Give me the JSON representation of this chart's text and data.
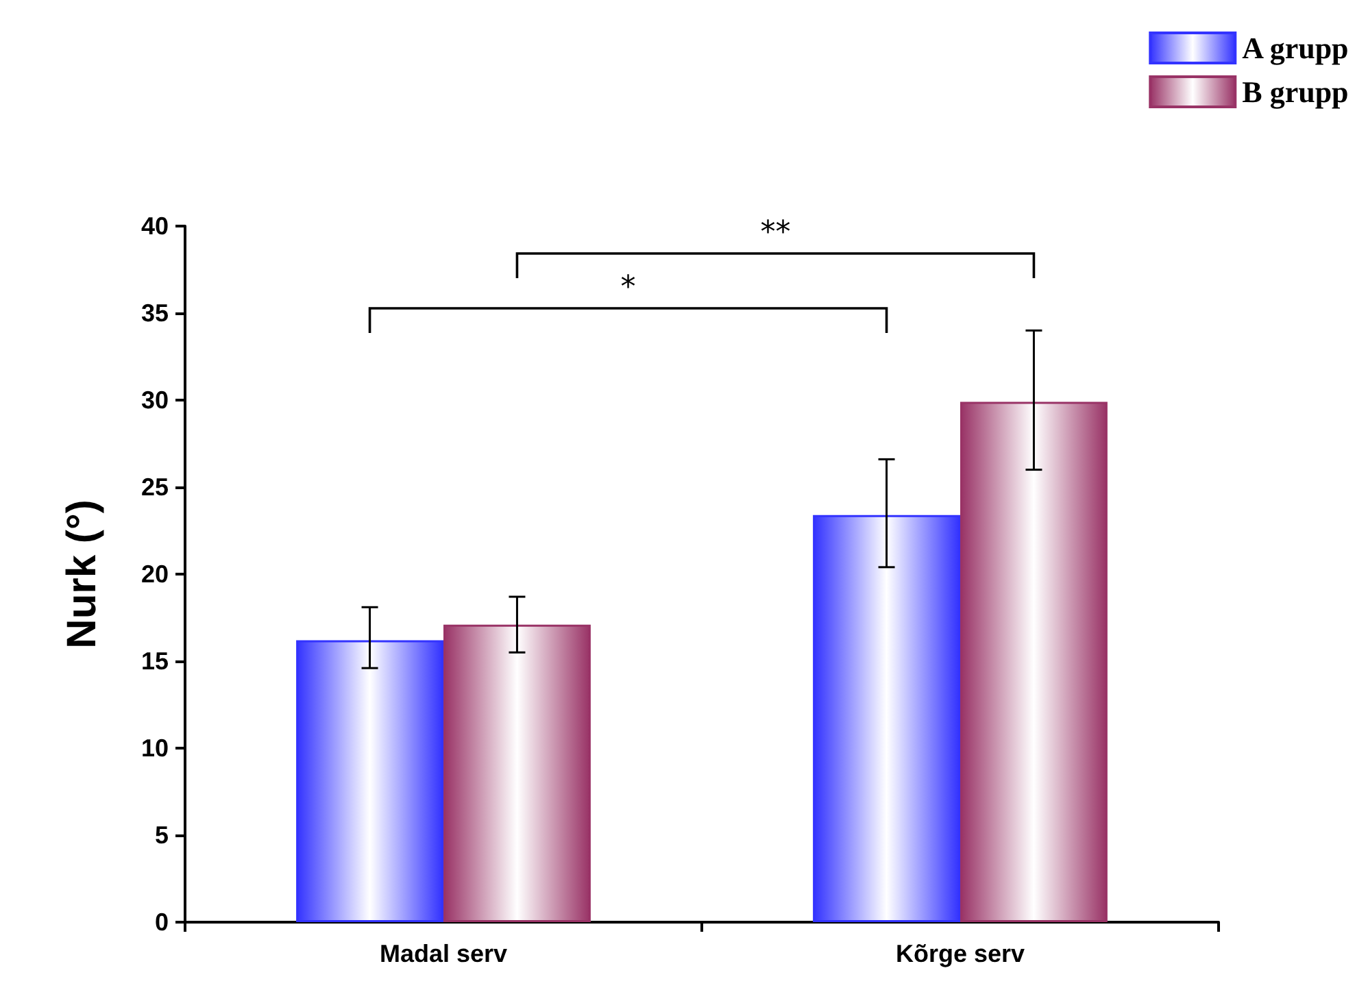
{
  "chart_data": {
    "type": "bar",
    "categories": [
      "Madal serv",
      "Kõrge serv"
    ],
    "ylabel": "Nurk (°)",
    "ylim": [
      0,
      40
    ],
    "yticks": [
      0,
      5,
      10,
      15,
      20,
      25,
      30,
      35,
      40
    ],
    "legend": "top right",
    "grid": false,
    "series": [
      {
        "name": "A grupp",
        "color": "#3333ff",
        "values": [
          16.2,
          23.4
        ],
        "errors": [
          [
            14.6,
            18.1
          ],
          [
            20.4,
            26.6
          ]
        ]
      },
      {
        "name": "B grupp",
        "color": "#993366",
        "values": [
          17.1,
          29.9
        ],
        "errors": [
          [
            15.5,
            18.7
          ],
          [
            26.0,
            34.0
          ]
        ]
      }
    ],
    "annotations": [
      "*",
      "**"
    ]
  }
}
